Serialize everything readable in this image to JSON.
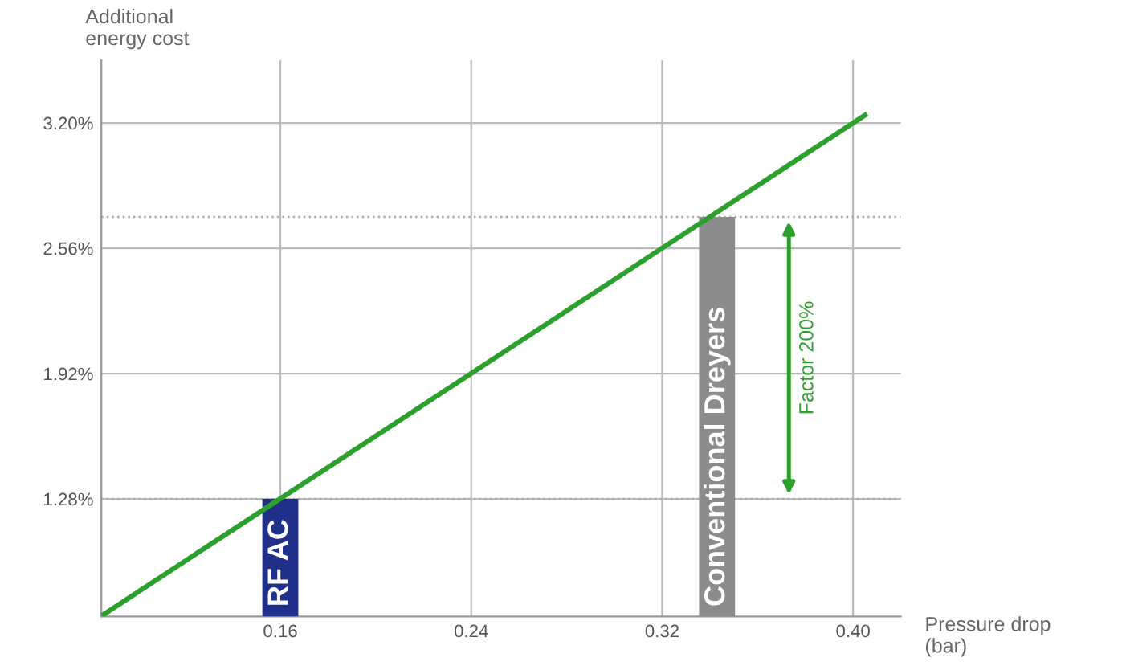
{
  "chart_data": {
    "type": "line",
    "xlabel": "Pressure drop\n(bar)",
    "ylabel": "Additional\nenergy cost",
    "xlim": [
      0.085,
      0.42
    ],
    "ylim": [
      0.68,
      3.52
    ],
    "xticks": [
      0.16,
      0.24,
      0.32,
      {
        "value": 0.4,
        "label": "0.40"
      }
    ],
    "yticks": [
      {
        "value": 1.28,
        "label": "1.28%"
      },
      {
        "value": 1.92,
        "label": "1.92%"
      },
      {
        "value": 2.56,
        "label": "2.56%"
      },
      {
        "value": 3.2,
        "label": "3.20%"
      }
    ],
    "grid": true,
    "series": [
      {
        "color": "#2ca02c",
        "x": [
          0.086,
          0.405
        ],
        "values": [
          0.69,
          3.24
        ]
      },
      {
        "type": "bar",
        "name": "RF AC",
        "color": "#1f2f8a",
        "x": [
          0.16
        ],
        "values": [
          1.28
        ]
      },
      {
        "type": "bar",
        "name": "Conventional Dreyers",
        "color": "#8c8c8c",
        "x": [
          0.343
        ],
        "values": [
          2.72
        ]
      }
    ],
    "ref_lines": [
      {
        "axis": "y",
        "value": 1.28,
        "line_style": "dotted",
        "color": "#aaaaaa"
      },
      {
        "axis": "y",
        "value": 2.72,
        "line_style": "dotted",
        "color": "#aaaaaa"
      }
    ],
    "annotations": [
      "Factor 200%"
    ]
  }
}
